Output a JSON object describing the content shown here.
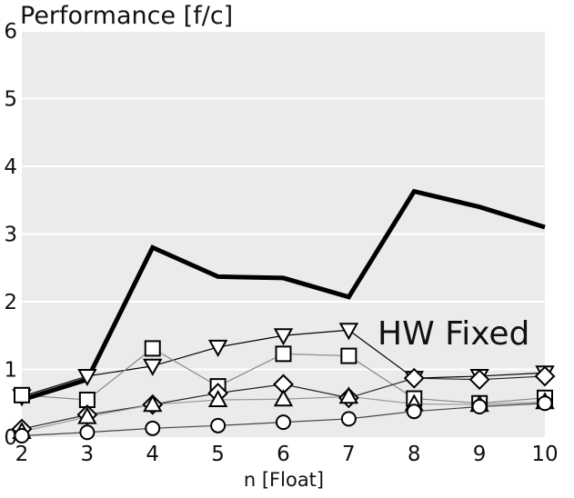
{
  "chart_data": {
    "type": "line",
    "title": "",
    "ylabel": "Performance [f/c]",
    "xlabel": "n [Float]",
    "x": [
      2,
      3,
      4,
      5,
      6,
      7,
      8,
      9,
      10
    ],
    "xlim": [
      2,
      10
    ],
    "ylim": [
      0,
      6
    ],
    "yticks": [
      0,
      1,
      2,
      3,
      4,
      5,
      6
    ],
    "xticks": [
      2,
      3,
      4,
      5,
      6,
      7,
      8,
      9,
      10
    ],
    "grid": "horizontal",
    "background": "#ebebeb",
    "annotation": "HW Fixed",
    "series": [
      {
        "marker": "none",
        "color": "#000000",
        "width": 5,
        "values": [
          0.55,
          0.85,
          2.8,
          2.37,
          2.35,
          2.07,
          3.63,
          3.4,
          3.1
        ]
      },
      {
        "marker": "triangle-down",
        "color": "#000000",
        "width": 1.2,
        "values": [
          0.6,
          0.9,
          1.05,
          1.33,
          1.5,
          1.58,
          0.87,
          0.9,
          0.95
        ]
      },
      {
        "marker": "square",
        "color": "#888888",
        "width": 1.2,
        "values": [
          0.62,
          0.55,
          1.31,
          0.75,
          1.23,
          1.2,
          0.57,
          0.5,
          0.58
        ]
      },
      {
        "marker": "diamond",
        "color": "#222222",
        "width": 1.2,
        "values": [
          0.12,
          0.33,
          0.48,
          0.65,
          0.78,
          0.58,
          0.87,
          0.85,
          0.9
        ]
      },
      {
        "marker": "triangle-up",
        "color": "#999999",
        "width": 1.2,
        "values": [
          0.08,
          0.3,
          0.48,
          0.55,
          0.56,
          0.6,
          0.49,
          0.48,
          0.52
        ]
      },
      {
        "marker": "circle",
        "color": "#444444",
        "width": 1.2,
        "values": [
          0.02,
          0.07,
          0.13,
          0.17,
          0.22,
          0.27,
          0.38,
          0.45,
          0.5
        ]
      }
    ]
  }
}
